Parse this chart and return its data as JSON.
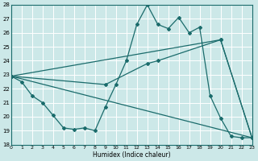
{
  "xlabel": "Humidex (Indice chaleur)",
  "bg_color": "#cce8e8",
  "grid_color": "#ffffff",
  "line_color": "#1a6b6b",
  "ylim": [
    18,
    28
  ],
  "xlim": [
    0,
    23
  ],
  "yticks": [
    18,
    19,
    20,
    21,
    22,
    23,
    24,
    25,
    26,
    27,
    28
  ],
  "xticks": [
    0,
    1,
    2,
    3,
    4,
    5,
    6,
    7,
    8,
    9,
    10,
    11,
    12,
    13,
    14,
    15,
    16,
    17,
    18,
    19,
    20,
    21,
    22,
    23
  ],
  "curve1_x": [
    0,
    1,
    2,
    3,
    4,
    5,
    6,
    7,
    8,
    9,
    10,
    11,
    12,
    13,
    14,
    15,
    16,
    17,
    18,
    19,
    20,
    21,
    22,
    23
  ],
  "curve1_y": [
    22.9,
    22.5,
    21.5,
    21.0,
    20.1,
    19.2,
    19.1,
    19.2,
    19.0,
    20.7,
    22.3,
    24.0,
    26.6,
    28.0,
    26.6,
    26.3,
    27.1,
    26.0,
    26.4,
    21.5,
    19.9,
    18.6,
    18.5,
    18.5
  ],
  "curve2_x": [
    0,
    23
  ],
  "curve2_y": [
    22.9,
    18.5
  ],
  "curve3_x": [
    0,
    20,
    23
  ],
  "curve3_y": [
    22.9,
    25.5,
    18.5
  ],
  "curve4_x": [
    0,
    9,
    13,
    14,
    20,
    23
  ],
  "curve4_y": [
    22.9,
    22.3,
    23.8,
    24.0,
    25.5,
    18.5
  ]
}
